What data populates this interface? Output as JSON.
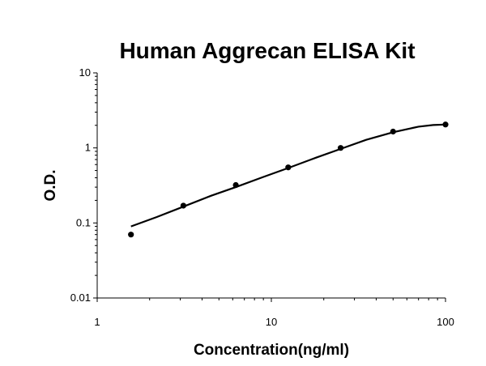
{
  "chart_data": {
    "type": "scatter",
    "title": "Human Aggrecan ELISA Kit",
    "xlabel": "Concentration(ng/ml)",
    "ylabel": "O.D.",
    "x_scale": "log",
    "y_scale": "log",
    "xlim": [
      1,
      100
    ],
    "ylim": [
      0.01,
      10
    ],
    "x_ticks": [
      1,
      10,
      100
    ],
    "x_tick_labels": [
      "1",
      "10",
      "100"
    ],
    "y_ticks": [
      0.01,
      0.1,
      1,
      10
    ],
    "y_tick_labels": [
      "0.01",
      "0.1",
      "1",
      "10"
    ],
    "grid": false,
    "series": [
      {
        "style": "points",
        "color": "#000000",
        "x": [
          1.5625,
          3.125,
          6.25,
          12.5,
          25,
          50,
          100
        ],
        "y": [
          0.07,
          0.17,
          0.32,
          0.55,
          1.0,
          1.65,
          2.05
        ]
      },
      {
        "style": "fitted-curve",
        "color": "#000000",
        "x": [
          1.5625,
          2.2,
          3.125,
          4.5,
          6.25,
          9,
          12.5,
          18,
          25,
          35,
          50,
          70,
          85,
          100
        ],
        "y": [
          0.09,
          0.12,
          0.165,
          0.23,
          0.3,
          0.41,
          0.54,
          0.74,
          0.97,
          1.28,
          1.62,
          1.92,
          2.02,
          2.05
        ]
      }
    ]
  }
}
